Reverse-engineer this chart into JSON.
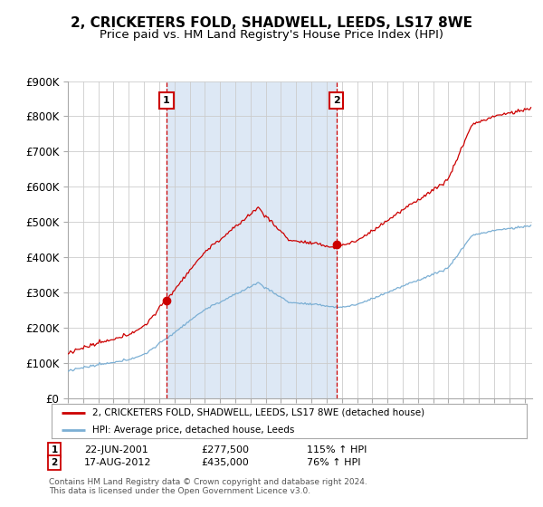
{
  "title": "2, CRICKETERS FOLD, SHADWELL, LEEDS, LS17 8WE",
  "subtitle": "Price paid vs. HM Land Registry's House Price Index (HPI)",
  "ylim": [
    0,
    900000
  ],
  "yticks": [
    0,
    100000,
    200000,
    300000,
    400000,
    500000,
    600000,
    700000,
    800000,
    900000
  ],
  "ytick_labels": [
    "£0",
    "£100K",
    "£200K",
    "£300K",
    "£400K",
    "£500K",
    "£600K",
    "£700K",
    "£800K",
    "£900K"
  ],
  "house_color": "#cc0000",
  "hpi_color": "#7bafd4",
  "shade_color": "#dde8f5",
  "sale1_year": 2001.47,
  "sale1_price": 277500,
  "sale2_year": 2012.63,
  "sale2_price": 435000,
  "legend_house": "2, CRICKETERS FOLD, SHADWELL, LEEDS, LS17 8WE (detached house)",
  "legend_hpi": "HPI: Average price, detached house, Leeds",
  "copyright": "Contains HM Land Registry data © Crown copyright and database right 2024.\nThis data is licensed under the Open Government Licence v3.0.",
  "background_color": "#ffffff",
  "grid_color": "#cccccc",
  "title_fontsize": 11,
  "subtitle_fontsize": 9.5
}
